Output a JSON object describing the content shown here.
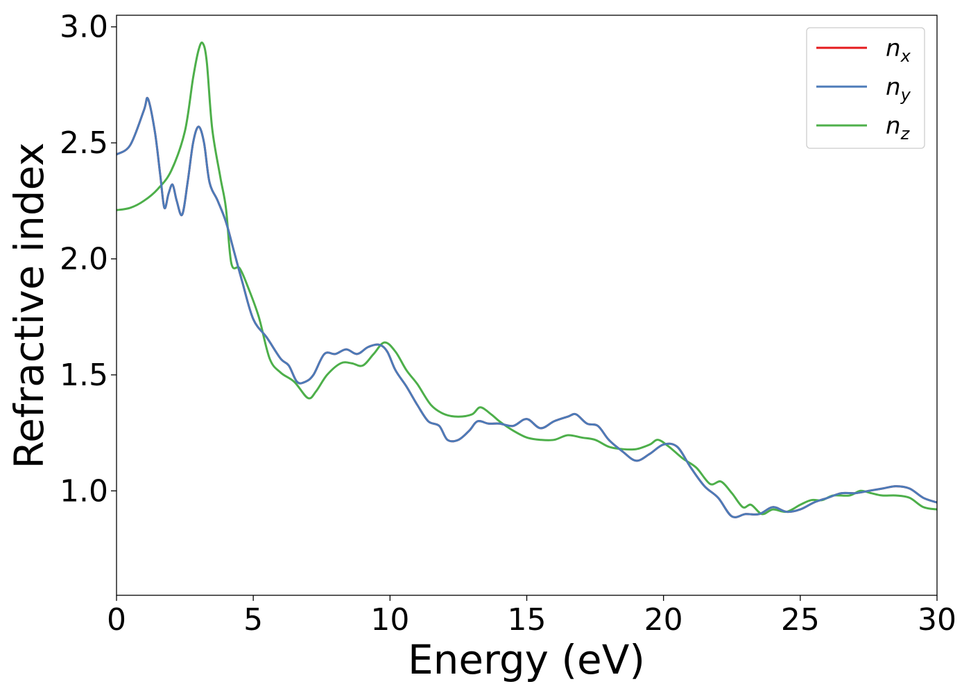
{
  "chart_data": {
    "type": "line",
    "title": "",
    "xlabel": "Energy (eV)",
    "ylabel": "Refractive index",
    "xlim": [
      0,
      30
    ],
    "ylim": [
      0.55,
      3.05
    ],
    "xticks": [
      0,
      5,
      10,
      15,
      20,
      25,
      30
    ],
    "xtick_labels": [
      "0",
      "5",
      "10",
      "15",
      "20",
      "25",
      "30"
    ],
    "yticks": [
      1.0,
      1.5,
      2.0,
      2.5,
      3.0
    ],
    "ytick_labels": [
      "1.0",
      "1.5",
      "2.0",
      "2.5",
      "3.0"
    ],
    "grid": false,
    "legend_position": "top-right",
    "series": [
      {
        "name": "n",
        "subscript": "x",
        "color": "#e41a1c",
        "x": [
          0,
          0.5,
          1.0,
          1.15,
          1.4,
          1.6,
          1.75,
          1.9,
          2.05,
          2.2,
          2.4,
          2.6,
          2.8,
          3.0,
          3.2,
          3.4,
          3.7,
          4.0,
          4.3,
          4.6,
          5.0,
          5.5,
          6.0,
          6.3,
          6.6,
          6.9,
          7.2,
          7.6,
          8.0,
          8.4,
          8.8,
          9.2,
          9.6,
          9.9,
          10.2,
          10.6,
          11.0,
          11.4,
          11.8,
          12.1,
          12.5,
          12.9,
          13.2,
          13.6,
          14.0,
          14.5,
          15.0,
          15.5,
          16.0,
          16.5,
          16.8,
          17.2,
          17.6,
          18.0,
          18.5,
          19.0,
          19.5,
          20.0,
          20.5,
          21.0,
          21.5,
          22.0,
          22.5,
          23.0,
          23.5,
          24.0,
          24.5,
          25.0,
          25.5,
          26.0,
          26.5,
          27.0,
          27.5,
          28.0,
          28.5,
          29.0,
          29.5,
          30.0
        ],
        "y": [
          2.45,
          2.49,
          2.64,
          2.69,
          2.55,
          2.36,
          2.22,
          2.28,
          2.32,
          2.25,
          2.19,
          2.33,
          2.5,
          2.57,
          2.5,
          2.33,
          2.25,
          2.16,
          2.03,
          1.9,
          1.74,
          1.66,
          1.57,
          1.54,
          1.47,
          1.47,
          1.5,
          1.59,
          1.59,
          1.61,
          1.59,
          1.62,
          1.63,
          1.6,
          1.52,
          1.45,
          1.37,
          1.3,
          1.28,
          1.22,
          1.22,
          1.26,
          1.3,
          1.29,
          1.29,
          1.28,
          1.31,
          1.27,
          1.3,
          1.32,
          1.33,
          1.29,
          1.28,
          1.22,
          1.17,
          1.13,
          1.16,
          1.2,
          1.19,
          1.1,
          1.02,
          0.97,
          0.89,
          0.9,
          0.9,
          0.93,
          0.91,
          0.92,
          0.95,
          0.97,
          0.99,
          0.99,
          1.0,
          1.01,
          1.02,
          1.01,
          0.97,
          0.95
        ]
      },
      {
        "name": "n",
        "subscript": "y",
        "color": "#4c7bb8",
        "x": [
          0,
          0.5,
          1.0,
          1.15,
          1.4,
          1.6,
          1.75,
          1.9,
          2.05,
          2.2,
          2.4,
          2.6,
          2.8,
          3.0,
          3.2,
          3.4,
          3.7,
          4.0,
          4.3,
          4.6,
          5.0,
          5.5,
          6.0,
          6.3,
          6.6,
          6.9,
          7.2,
          7.6,
          8.0,
          8.4,
          8.8,
          9.2,
          9.6,
          9.9,
          10.2,
          10.6,
          11.0,
          11.4,
          11.8,
          12.1,
          12.5,
          12.9,
          13.2,
          13.6,
          14.0,
          14.5,
          15.0,
          15.5,
          16.0,
          16.5,
          16.8,
          17.2,
          17.6,
          18.0,
          18.5,
          19.0,
          19.5,
          20.0,
          20.5,
          21.0,
          21.5,
          22.0,
          22.5,
          23.0,
          23.5,
          24.0,
          24.5,
          25.0,
          25.5,
          26.0,
          26.5,
          27.0,
          27.5,
          28.0,
          28.5,
          29.0,
          29.5,
          30.0
        ],
        "y": [
          2.45,
          2.49,
          2.64,
          2.69,
          2.55,
          2.36,
          2.22,
          2.28,
          2.32,
          2.25,
          2.19,
          2.33,
          2.5,
          2.57,
          2.5,
          2.33,
          2.25,
          2.16,
          2.03,
          1.9,
          1.74,
          1.66,
          1.57,
          1.54,
          1.47,
          1.47,
          1.5,
          1.59,
          1.59,
          1.61,
          1.59,
          1.62,
          1.63,
          1.6,
          1.52,
          1.45,
          1.37,
          1.3,
          1.28,
          1.22,
          1.22,
          1.26,
          1.3,
          1.29,
          1.29,
          1.28,
          1.31,
          1.27,
          1.3,
          1.32,
          1.33,
          1.29,
          1.28,
          1.22,
          1.17,
          1.13,
          1.16,
          1.2,
          1.19,
          1.1,
          1.02,
          0.97,
          0.89,
          0.9,
          0.9,
          0.93,
          0.91,
          0.92,
          0.95,
          0.97,
          0.99,
          0.99,
          1.0,
          1.01,
          1.02,
          1.01,
          0.97,
          0.95
        ]
      },
      {
        "name": "n",
        "subscript": "z",
        "color": "#4daf4a",
        "x": [
          0,
          0.5,
          1.0,
          1.5,
          2.0,
          2.5,
          2.8,
          3.0,
          3.15,
          3.3,
          3.5,
          3.8,
          4.0,
          4.2,
          4.5,
          4.8,
          5.2,
          5.6,
          6.0,
          6.5,
          7.0,
          7.3,
          7.7,
          8.2,
          8.6,
          9.0,
          9.4,
          9.8,
          10.2,
          10.6,
          11.0,
          11.5,
          12.0,
          12.5,
          13.0,
          13.3,
          13.7,
          14.0,
          14.5,
          15.0,
          15.5,
          16.0,
          16.5,
          17.0,
          17.5,
          18.0,
          18.5,
          19.0,
          19.5,
          19.8,
          20.2,
          20.7,
          21.2,
          21.7,
          22.1,
          22.5,
          22.9,
          23.2,
          23.6,
          24.0,
          24.5,
          25.0,
          25.4,
          25.8,
          26.2,
          26.8,
          27.2,
          27.6,
          28.0,
          28.5,
          29.0,
          29.5,
          30.0
        ],
        "y": [
          2.21,
          2.22,
          2.25,
          2.3,
          2.38,
          2.55,
          2.78,
          2.9,
          2.93,
          2.85,
          2.56,
          2.35,
          2.22,
          1.98,
          1.96,
          1.88,
          1.75,
          1.57,
          1.51,
          1.47,
          1.4,
          1.43,
          1.5,
          1.55,
          1.55,
          1.54,
          1.59,
          1.64,
          1.6,
          1.52,
          1.46,
          1.37,
          1.33,
          1.32,
          1.33,
          1.36,
          1.33,
          1.3,
          1.26,
          1.23,
          1.22,
          1.22,
          1.24,
          1.23,
          1.22,
          1.19,
          1.18,
          1.18,
          1.2,
          1.22,
          1.19,
          1.14,
          1.1,
          1.03,
          1.04,
          0.99,
          0.93,
          0.94,
          0.9,
          0.92,
          0.91,
          0.94,
          0.96,
          0.96,
          0.98,
          0.98,
          1.0,
          0.99,
          0.98,
          0.98,
          0.97,
          0.93,
          0.92
        ]
      }
    ]
  }
}
